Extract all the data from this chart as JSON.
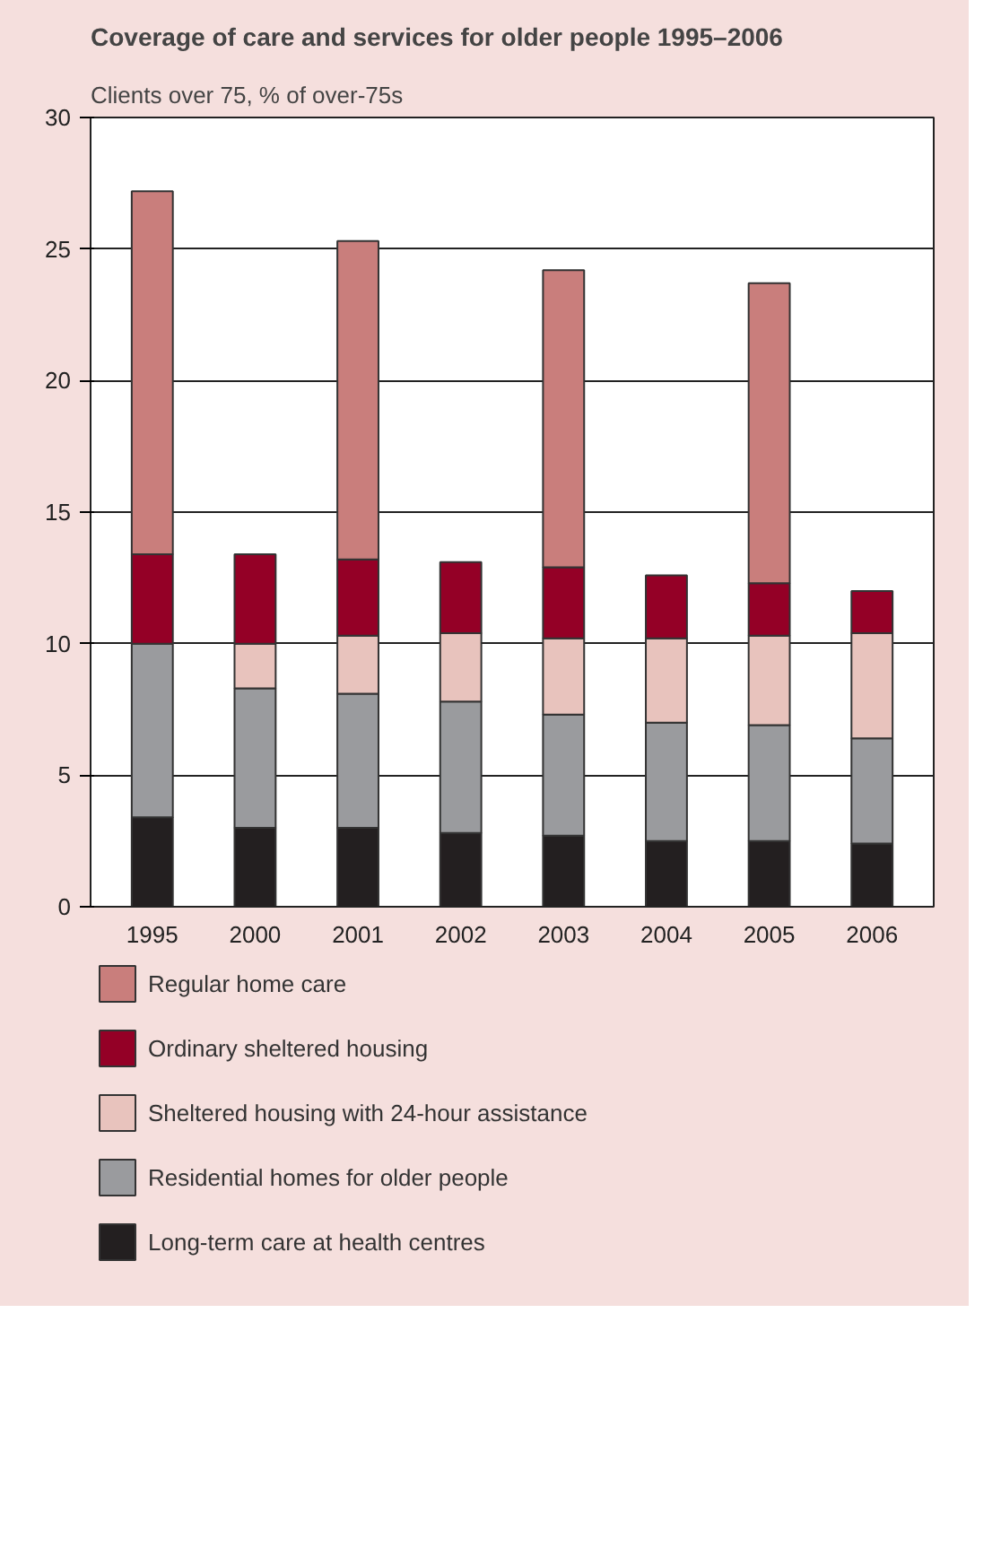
{
  "chart_data": {
    "type": "bar",
    "title": "Coverage of care and services for older people 1995–2006",
    "ylabel": "Clients over 75, % of over-75s",
    "categories": [
      "1995",
      "2000",
      "2001",
      "2002",
      "2003",
      "2004",
      "2005",
      "2006"
    ],
    "stacked": true,
    "ylim": [
      0,
      30
    ],
    "yticks": [
      0,
      5,
      10,
      15,
      20,
      25,
      30
    ],
    "grid": "y",
    "legend": "bottom",
    "series": [
      {
        "name": "Long-term care at health centres",
        "color": "#231f20",
        "values": [
          3.4,
          3.0,
          3.0,
          2.8,
          2.7,
          2.5,
          2.5,
          2.4
        ]
      },
      {
        "name": "Residential homes for older people",
        "color": "#9a9b9e",
        "values": [
          6.6,
          5.3,
          5.1,
          5.0,
          4.6,
          4.5,
          4.4,
          4.0
        ]
      },
      {
        "name": "Sheltered housing with 24-hour assistance",
        "color": "#e8c3bd",
        "values": [
          null,
          1.7,
          2.2,
          2.6,
          2.9,
          3.2,
          3.4,
          4.0
        ]
      },
      {
        "name": "Ordinary sheltered housing",
        "color": "#940026",
        "values": [
          3.4,
          3.4,
          2.9,
          2.7,
          2.7,
          2.4,
          2.0,
          1.6
        ]
      },
      {
        "name": "Regular home care",
        "color": "#c97e7c",
        "values": [
          13.8,
          null,
          12.1,
          null,
          11.3,
          null,
          11.4,
          null
        ]
      }
    ]
  }
}
